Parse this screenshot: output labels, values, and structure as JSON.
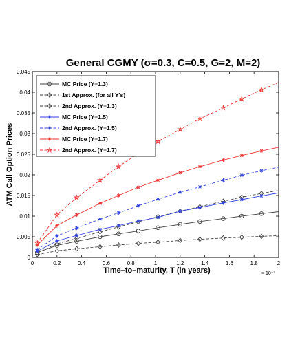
{
  "chart_data": {
    "type": "line",
    "title": "General CGMY (σ=0.3, C=0.5, G=2, M=2)",
    "xlabel": "Time–to–maturity, T (in years)",
    "ylabel": "ATM Call Option Prices",
    "x_multiplier": "× 10⁻³",
    "xlim": [
      0,
      2
    ],
    "ylim": [
      0,
      0.045
    ],
    "x_ticks": [
      "0",
      "0.2",
      "0.4",
      "0.6",
      "0.8",
      "1",
      "1.2",
      "1.4",
      "1.6",
      "1.8",
      "2"
    ],
    "y_ticks": [
      "0",
      "0.005",
      "0.01",
      "0.015",
      "0.02",
      "0.025",
      "0.03",
      "0.035",
      "0.04",
      "0.045"
    ],
    "grid": false,
    "legend_position": "top-left",
    "series": [
      {
        "name": "MC Price (Y=1.3)",
        "color": "#444444",
        "dash": "solid",
        "marker": "circle",
        "x": [
          0.04,
          0.2,
          0.36,
          0.55,
          0.7,
          0.86,
          1.02,
          1.2,
          1.36,
          1.55,
          1.7,
          1.86
        ],
        "y": [
          0.0012,
          0.0029,
          0.0039,
          0.005,
          0.0057,
          0.0064,
          0.0072,
          0.008,
          0.0087,
          0.0094,
          0.01,
          0.0106
        ]
      },
      {
        "name": "1st Approx. (for all Y's)",
        "color": "#444444",
        "dash": "dashed",
        "marker": "diamond",
        "x": [
          0.04,
          0.2,
          0.36,
          0.55,
          0.7,
          0.86,
          1.02,
          1.2,
          1.36,
          1.55,
          1.7,
          1.86
        ],
        "y": [
          0.0007,
          0.0016,
          0.0021,
          0.0026,
          0.003,
          0.0034,
          0.0037,
          0.0041,
          0.0044,
          0.0047,
          0.0049,
          0.0051
        ]
      },
      {
        "name": "2nd Approx. (Y=1.3)",
        "color": "#444444",
        "dash": "dashed",
        "marker": "diamond",
        "x": [
          0.04,
          0.2,
          0.36,
          0.55,
          0.7,
          0.86,
          1.02,
          1.2,
          1.36,
          1.55,
          1.7,
          1.86
        ],
        "y": [
          0.0011,
          0.0033,
          0.0046,
          0.0062,
          0.0074,
          0.0086,
          0.0099,
          0.0112,
          0.0123,
          0.0136,
          0.0146,
          0.0155
        ]
      },
      {
        "name": "MC Price (Y=1.5)",
        "color": "#3344dd",
        "dash": "solid",
        "marker": "asterisk",
        "x": [
          0.04,
          0.2,
          0.36,
          0.55,
          0.7,
          0.86,
          1.02,
          1.2,
          1.36,
          1.55,
          1.7,
          1.86
        ],
        "y": [
          0.0015,
          0.004,
          0.0053,
          0.0068,
          0.0077,
          0.0088,
          0.0097,
          0.0112,
          0.0121,
          0.0132,
          0.014,
          0.0149
        ]
      },
      {
        "name": "2nd Approx. (Y=1.5)",
        "color": "#3344dd",
        "dash": "dashed",
        "marker": "asterisk",
        "x": [
          0.04,
          0.2,
          0.36,
          0.55,
          0.7,
          0.86,
          1.02,
          1.2,
          1.36,
          1.55,
          1.7,
          1.86
        ],
        "y": [
          0.0019,
          0.0052,
          0.0071,
          0.0093,
          0.0108,
          0.0125,
          0.0141,
          0.0158,
          0.0171,
          0.0187,
          0.0199,
          0.021
        ]
      },
      {
        "name": "MC Price (Y=1.7)",
        "color": "#ee3333",
        "dash": "solid",
        "marker": "asterisk",
        "x": [
          0.04,
          0.2,
          0.36,
          0.55,
          0.7,
          0.86,
          1.02,
          1.2,
          1.36,
          1.55,
          1.7,
          1.86
        ],
        "y": [
          0.003,
          0.0077,
          0.0103,
          0.0131,
          0.015,
          0.017,
          0.0187,
          0.0205,
          0.022,
          0.0236,
          0.0247,
          0.0258
        ]
      },
      {
        "name": "2nd Approx. (Y=1.7)",
        "color": "#ee3333",
        "dash": "dashed",
        "marker": "star",
        "x": [
          0.04,
          0.2,
          0.36,
          0.55,
          0.7,
          0.86,
          1.02,
          1.2,
          1.36,
          1.55,
          1.7,
          1.86
        ],
        "y": [
          0.0035,
          0.0103,
          0.0145,
          0.0187,
          0.022,
          0.0252,
          0.0281,
          0.031,
          0.0336,
          0.0362,
          0.0384,
          0.0406
        ]
      }
    ]
  }
}
